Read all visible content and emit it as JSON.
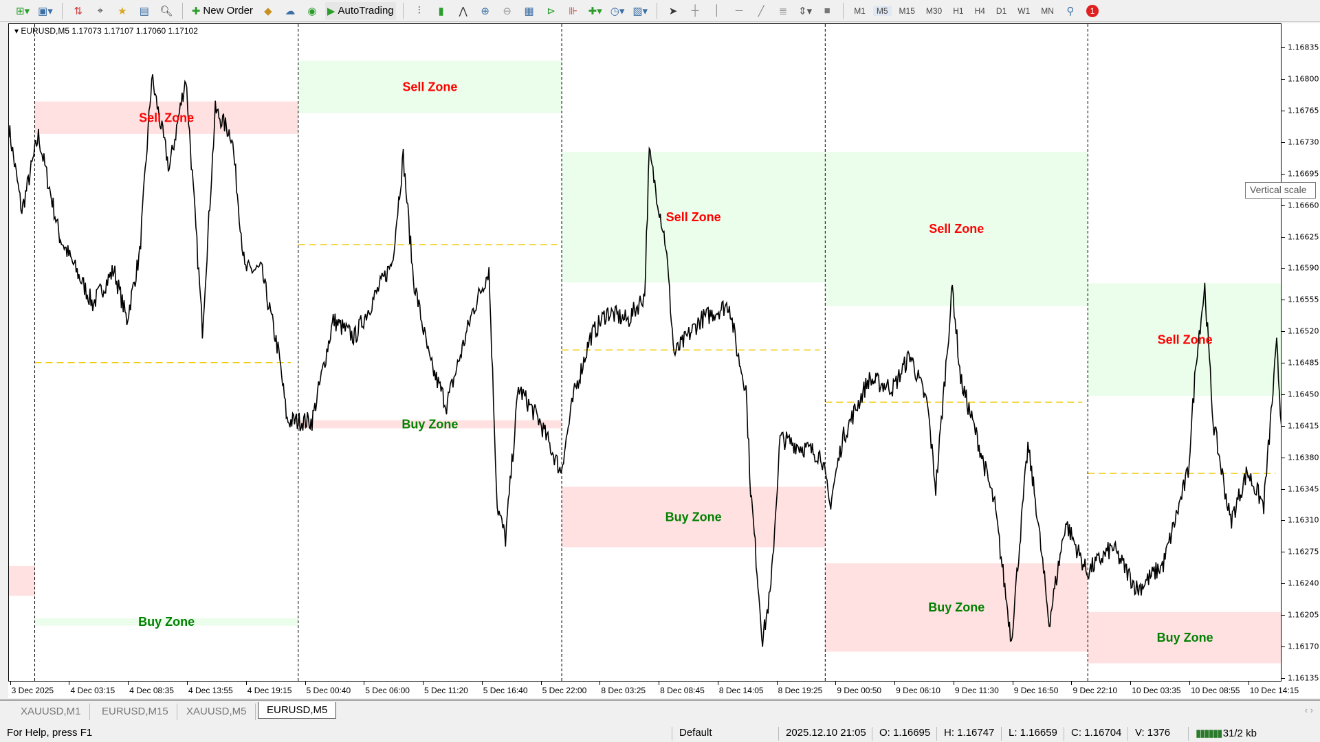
{
  "toolbar": {
    "icons": [
      "new-chart-icon",
      "profiles-icon",
      "market-watch-icon",
      "crosshair-icon",
      "navigator-icon",
      "data-window-icon",
      "strategy-tester-icon",
      "new-order-icon",
      "metaeditor-icon",
      "signals-icon",
      "vps-icon",
      "autotrading-icon",
      "bar-chart-icon",
      "candlesticks-icon",
      "line-chart-icon",
      "zoom-in-icon",
      "zoom-out-icon",
      "tile-windows-icon",
      "autoscroll-icon",
      "chart-shift-icon",
      "indicators-icon",
      "periods-icon",
      "templates-icon",
      "cursor-icon",
      "crosshair-tool-icon",
      "vertical-line-icon",
      "horizontal-line-icon",
      "trendline-icon",
      "fibonacci-icon",
      "arrows-icon",
      "rectangle-icon",
      "search-icon",
      "notifications-icon"
    ],
    "new_order": "New Order",
    "autotrading": "AutoTrading",
    "timeframes": [
      "M1",
      "M5",
      "M15",
      "M30",
      "H1",
      "H4",
      "D1",
      "W1",
      "MN"
    ],
    "active_timeframe": "M5",
    "notification_count": "1"
  },
  "chart": {
    "header": "EURUSD,M5  1.17073 1.17107 1.17060 1.17102",
    "tooltip": "Vertical scale",
    "colors": {
      "sell_text": "#ff0000",
      "buy_text": "#008000",
      "pink_zone": "#ffe1e1",
      "green_zone": "#ebfdeb",
      "midline": "#f0c800",
      "price": "#000000"
    }
  },
  "chart_data": {
    "type": "line",
    "symbol": "EURUSD",
    "timeframe": "M5",
    "ylim": [
      1.16131,
      1.16862
    ],
    "price_ticks": [
      "1.16835",
      "1.16800",
      "1.16765",
      "1.16730",
      "1.16695",
      "1.16660",
      "1.16625",
      "1.16590",
      "1.16555",
      "1.16520",
      "1.16485",
      "1.16450",
      "1.16415",
      "1.16380",
      "1.16345",
      "1.16310",
      "1.16275",
      "1.16240",
      "1.16205",
      "1.16170",
      "1.16135"
    ],
    "time_ticks": [
      "3 Dec 2025",
      "4 Dec 03:15",
      "4 Dec 08:35",
      "4 Dec 13:55",
      "4 Dec 19:15",
      "5 Dec 00:40",
      "5 Dec 06:00",
      "5 Dec 11:20",
      "5 Dec 16:40",
      "5 Dec 22:00",
      "8 Dec 03:25",
      "8 Dec 08:45",
      "8 Dec 14:05",
      "8 Dec 19:25",
      "9 Dec 00:50",
      "9 Dec 06:10",
      "9 Dec 11:30",
      "9 Dec 16:50",
      "9 Dec 22:10",
      "10 Dec 03:35",
      "10 Dec 08:55",
      "10 Dec 14:15"
    ],
    "total_bars": 1382,
    "day_separators": [
      28,
      314,
      600,
      886,
      1171
    ],
    "price_path": [
      [
        0,
        1.16747
      ],
      [
        14,
        1.16654
      ],
      [
        32,
        1.16738
      ],
      [
        55,
        1.16626
      ],
      [
        91,
        1.16551
      ],
      [
        114,
        1.16589
      ],
      [
        128,
        1.16533
      ],
      [
        142,
        1.16607
      ],
      [
        155,
        1.16803
      ],
      [
        174,
        1.16701
      ],
      [
        192,
        1.16803
      ],
      [
        210,
        1.16523
      ],
      [
        224,
        1.16766
      ],
      [
        242,
        1.16738
      ],
      [
        256,
        1.16589
      ],
      [
        274,
        1.16589
      ],
      [
        293,
        1.16495
      ],
      [
        302,
        1.16421
      ],
      [
        329,
        1.16421
      ],
      [
        352,
        1.16533
      ],
      [
        375,
        1.16514
      ],
      [
        393,
        1.16551
      ],
      [
        416,
        1.16598
      ],
      [
        428,
        1.16715
      ],
      [
        439,
        1.16579
      ],
      [
        457,
        1.16486
      ],
      [
        475,
        1.16439
      ],
      [
        503,
        1.16542
      ],
      [
        521,
        1.16589
      ],
      [
        530,
        1.16327
      ],
      [
        539,
        1.1629
      ],
      [
        553,
        1.16458
      ],
      [
        576,
        1.16421
      ],
      [
        599,
        1.16365
      ],
      [
        613,
        1.16449
      ],
      [
        631,
        1.16514
      ],
      [
        649,
        1.16542
      ],
      [
        672,
        1.16533
      ],
      [
        690,
        1.16561
      ],
      [
        695,
        1.16719
      ],
      [
        713,
        1.16617
      ],
      [
        722,
        1.16495
      ],
      [
        750,
        1.16533
      ],
      [
        782,
        1.16551
      ],
      [
        791,
        1.16495
      ],
      [
        800,
        1.16458
      ],
      [
        805,
        1.16346
      ],
      [
        818,
        1.16178
      ],
      [
        827,
        1.16234
      ],
      [
        837,
        1.16402
      ],
      [
        859,
        1.16393
      ],
      [
        882,
        1.16383
      ],
      [
        891,
        1.16327
      ],
      [
        905,
        1.16402
      ],
      [
        933,
        1.16467
      ],
      [
        960,
        1.16458
      ],
      [
        978,
        1.16495
      ],
      [
        997,
        1.16439
      ],
      [
        1006,
        1.16346
      ],
      [
        1024,
        1.1657
      ],
      [
        1033,
        1.16467
      ],
      [
        1051,
        1.16402
      ],
      [
        1070,
        1.16327
      ],
      [
        1088,
        1.16178
      ],
      [
        1106,
        1.16393
      ],
      [
        1115,
        1.16327
      ],
      [
        1129,
        1.16197
      ],
      [
        1147,
        1.16309
      ],
      [
        1170,
        1.16253
      ],
      [
        1198,
        1.16281
      ],
      [
        1225,
        1.16234
      ],
      [
        1253,
        1.16262
      ],
      [
        1280,
        1.16365
      ],
      [
        1289,
        1.16495
      ],
      [
        1298,
        1.1657
      ],
      [
        1307,
        1.16421
      ],
      [
        1326,
        1.16309
      ],
      [
        1344,
        1.16365
      ],
      [
        1362,
        1.16327
      ],
      [
        1376,
        1.16505
      ],
      [
        1382,
        1.16402
      ]
    ],
    "zones": [
      {
        "label": "",
        "kind": "buy",
        "color": "pink",
        "start": -10,
        "end": 28,
        "top": 1.1626,
        "bottom": 1.16227
      },
      {
        "label": "Sell Zone",
        "kind": "sell",
        "color": "pink",
        "start": 28,
        "end": 314,
        "top": 1.16776,
        "bottom": 1.1674
      },
      {
        "label": "Buy Zone",
        "kind": "buy",
        "color": "green",
        "start": 28,
        "end": 314,
        "top": 1.16202,
        "bottom": 1.16194
      },
      {
        "label": "Sell Zone",
        "kind": "sell",
        "color": "green",
        "start": 314,
        "end": 600,
        "top": 1.16821,
        "bottom": 1.16763
      },
      {
        "label": "Buy Zone",
        "kind": "buy",
        "color": "pink",
        "start": 314,
        "end": 600,
        "top": 1.16422,
        "bottom": 1.16413
      },
      {
        "label": "Sell Zone",
        "kind": "sell",
        "color": "green",
        "start": 600,
        "end": 886,
        "top": 1.1672,
        "bottom": 1.16575
      },
      {
        "label": "Buy Zone",
        "kind": "buy",
        "color": "pink",
        "start": 600,
        "end": 886,
        "top": 1.16348,
        "bottom": 1.16281
      },
      {
        "label": "Sell Zone",
        "kind": "sell",
        "color": "green",
        "start": 886,
        "end": 1171,
        "top": 1.1672,
        "bottom": 1.16549
      },
      {
        "label": "Buy Zone",
        "kind": "buy",
        "color": "pink",
        "start": 886,
        "end": 1171,
        "top": 1.16263,
        "bottom": 1.16165
      },
      {
        "label": "Sell Zone",
        "kind": "sell",
        "color": "green",
        "start": 1171,
        "end": 1382,
        "top": 1.16574,
        "bottom": 1.16449
      },
      {
        "label": "Buy Zone",
        "kind": "buy",
        "color": "pink",
        "start": 1171,
        "end": 1382,
        "top": 1.16209,
        "bottom": 1.16152
      }
    ],
    "midlines": [
      {
        "start": 28,
        "end": 306,
        "price": 1.16486
      },
      {
        "start": 314,
        "end": 595,
        "price": 1.16617
      },
      {
        "start": 600,
        "end": 880,
        "price": 1.165
      },
      {
        "start": 886,
        "end": 1165,
        "price": 1.16442
      },
      {
        "start": 1171,
        "end": 1375,
        "price": 1.16363
      }
    ]
  },
  "tabs": [
    {
      "label": "XAUUSD,M1",
      "active": false
    },
    {
      "label": "EURUSD,M15",
      "active": false
    },
    {
      "label": "XAUUSD,M5",
      "active": false
    },
    {
      "label": "EURUSD,M5",
      "active": true
    }
  ],
  "status": {
    "help": "For Help, press F1",
    "profile": "Default",
    "datetime": "2025.12.10 21:05",
    "open": "O: 1.16695",
    "high": "H: 1.16747",
    "low": "L: 1.16659",
    "close": "C: 1.16704",
    "volume": "V: 1376",
    "traffic": "31/2 kb"
  }
}
